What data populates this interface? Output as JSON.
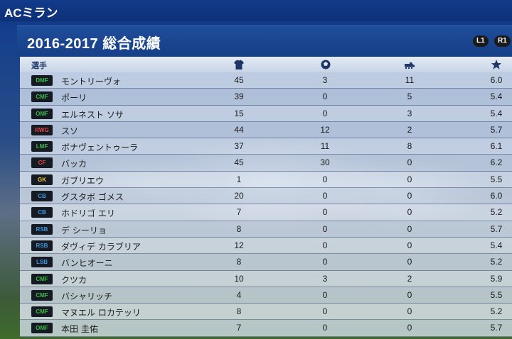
{
  "header": {
    "club": "ACミラン"
  },
  "panel": {
    "title": "2016-2017  総合成績",
    "buttons": {
      "l1": "L1",
      "r1": "R1"
    },
    "columns": {
      "player": "選手"
    },
    "icons": {
      "apps": "jersey-icon",
      "goals": "ball-icon",
      "assists": "boot-icon",
      "rating": "star-icon"
    }
  },
  "position_colors": {
    "DMF": "#3bbf4a",
    "CMF": "#3bbf4a",
    "OMF": "#3bbf4a",
    "LMF": "#3bbf4a",
    "RWG": "#e04848",
    "CF": "#e04848",
    "GK": "#f0c83a",
    "CB": "#3a9ae0",
    "RSB": "#3a9ae0",
    "LSB": "#3a9ae0"
  },
  "players": [
    {
      "pos": "DMF",
      "name": "モントリーヴォ",
      "apps": "45",
      "goals": "3",
      "assists": "11",
      "rating": "6.0"
    },
    {
      "pos": "CMF",
      "name": "ポーリ",
      "apps": "39",
      "goals": "0",
      "assists": "5",
      "rating": "5.4"
    },
    {
      "pos": "OMF",
      "name": "エルネスト ソサ",
      "apps": "15",
      "goals": "0",
      "assists": "3",
      "rating": "5.4"
    },
    {
      "pos": "RWG",
      "name": "スソ",
      "apps": "44",
      "goals": "12",
      "assists": "2",
      "rating": "5.7"
    },
    {
      "pos": "LMF",
      "name": "ボナヴェントゥーラ",
      "apps": "37",
      "goals": "11",
      "assists": "8",
      "rating": "6.1"
    },
    {
      "pos": "CF",
      "name": "バッカ",
      "apps": "45",
      "goals": "30",
      "assists": "0",
      "rating": "6.2"
    },
    {
      "pos": "GK",
      "name": "ガブリエウ",
      "apps": "1",
      "goals": "0",
      "assists": "0",
      "rating": "5.5"
    },
    {
      "pos": "CB",
      "name": "グスタボ ゴメス",
      "apps": "20",
      "goals": "0",
      "assists": "0",
      "rating": "6.0"
    },
    {
      "pos": "CB",
      "name": "ホドリゴ エリ",
      "apps": "7",
      "goals": "0",
      "assists": "0",
      "rating": "5.2"
    },
    {
      "pos": "RSB",
      "name": "デ シーリョ",
      "apps": "8",
      "goals": "0",
      "assists": "0",
      "rating": "5.7"
    },
    {
      "pos": "RSB",
      "name": "ダヴィデ カラブリア",
      "apps": "12",
      "goals": "0",
      "assists": "0",
      "rating": "5.4"
    },
    {
      "pos": "LSB",
      "name": "バンヒオーニ",
      "apps": "8",
      "goals": "0",
      "assists": "0",
      "rating": "5.2"
    },
    {
      "pos": "CMF",
      "name": "クツカ",
      "apps": "10",
      "goals": "3",
      "assists": "2",
      "rating": "5.9"
    },
    {
      "pos": "CMF",
      "name": "バシャリッチ",
      "apps": "4",
      "goals": "0",
      "assists": "0",
      "rating": "5.5"
    },
    {
      "pos": "CMF",
      "name": "マヌエル ロカテッリ",
      "apps": "8",
      "goals": "0",
      "assists": "0",
      "rating": "5.2"
    },
    {
      "pos": "OMF",
      "name": "本田 圭佑",
      "apps": "7",
      "goals": "0",
      "assists": "0",
      "rating": "5.7"
    }
  ]
}
